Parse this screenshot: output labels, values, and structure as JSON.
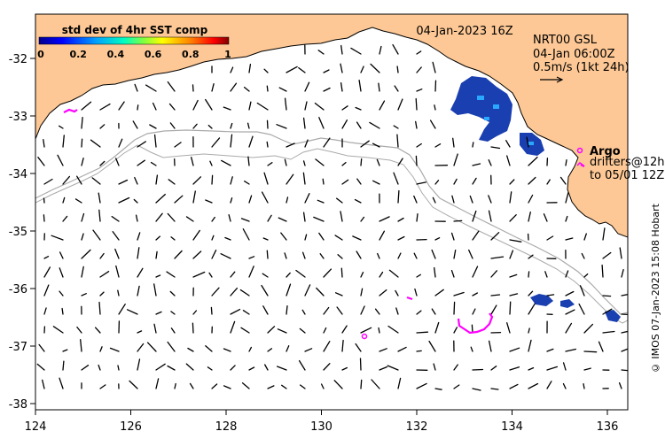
{
  "map": {
    "title": "04-Jan-2023 16Z",
    "colorbar": {
      "title": "std dev of 4hr SST comp",
      "ticks": [
        "0",
        "0.2",
        "0.4",
        "0.6",
        "0.8",
        "1"
      ]
    },
    "current_legend": {
      "line1": "NRT00 GSL",
      "line2": "04-Jan 06:00Z",
      "line3": "0.5m/s (1kt 24h)"
    },
    "argo_legend": {
      "argo": "Argo",
      "drifters_line1": "drifters@12h",
      "drifters_line2": "to 05/01 12Z"
    },
    "lon_ticks": [
      "124",
      "126",
      "128",
      "130",
      "132",
      "134",
      "136"
    ],
    "lat_ticks": [
      "-32",
      "-33",
      "-34",
      "-35",
      "-36",
      "-37",
      "-38"
    ],
    "credit": "© IMOS 07-Jan-2023 15:08 Hobart",
    "colors": {
      "land": "#fdc895",
      "ocean": "#ffffff",
      "sst_high_variance": "#1a3fb0",
      "argo": "#ff00ff",
      "bathymetry": "#aaaaaa"
    }
  }
}
